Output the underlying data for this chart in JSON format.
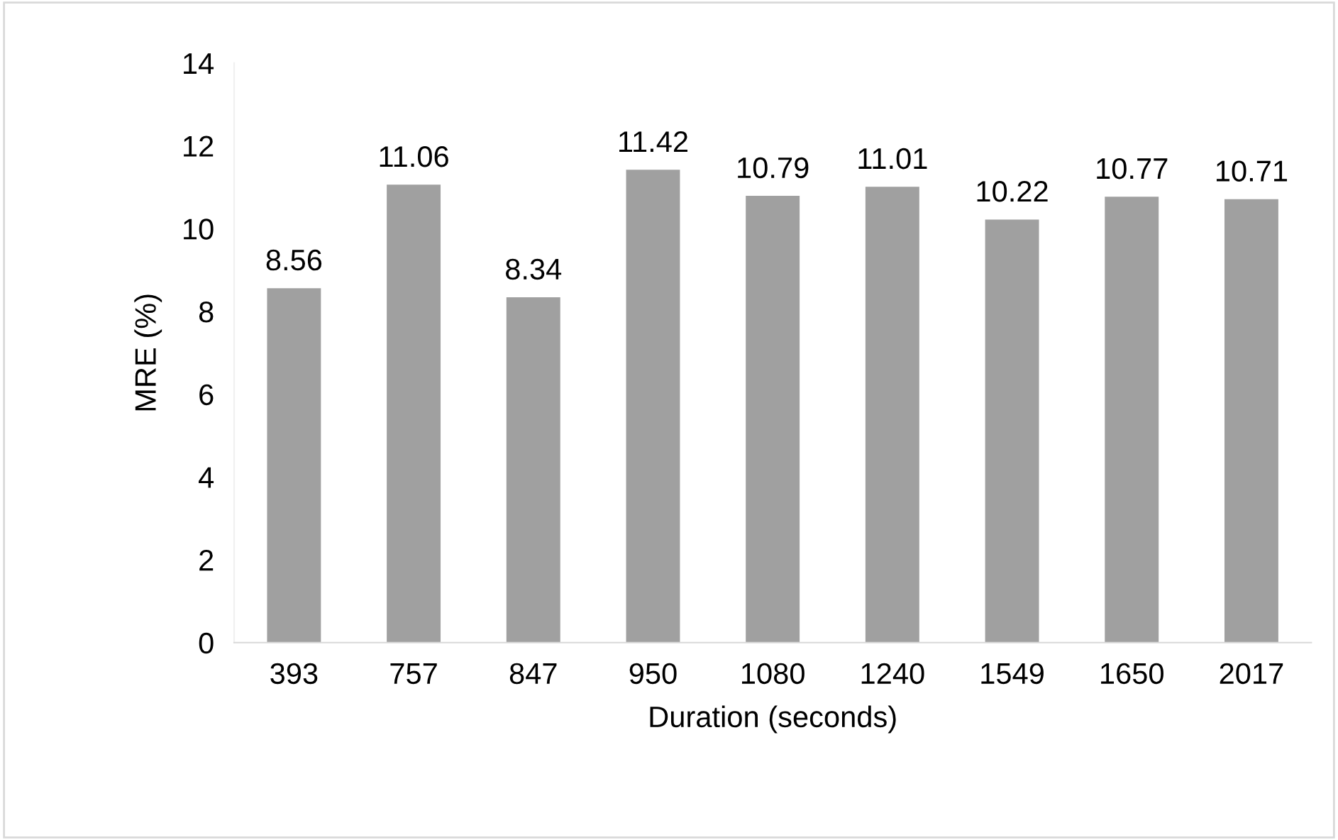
{
  "chart_data": {
    "type": "bar",
    "xlabel": "Duration (seconds)",
    "ylabel": "MRE (%)",
    "categories": [
      "393",
      "757",
      "847",
      "950",
      "1080",
      "1240",
      "1549",
      "1650",
      "2017"
    ],
    "values": [
      8.56,
      11.06,
      8.34,
      11.42,
      10.79,
      11.01,
      10.22,
      10.77,
      10.71
    ],
    "color": "#a0a0a0",
    "ylim": [
      0,
      14
    ],
    "yticks": [
      0,
      2,
      4,
      6,
      8,
      10,
      12,
      14
    ],
    "data_labels": true,
    "grid": false,
    "legend": false
  }
}
